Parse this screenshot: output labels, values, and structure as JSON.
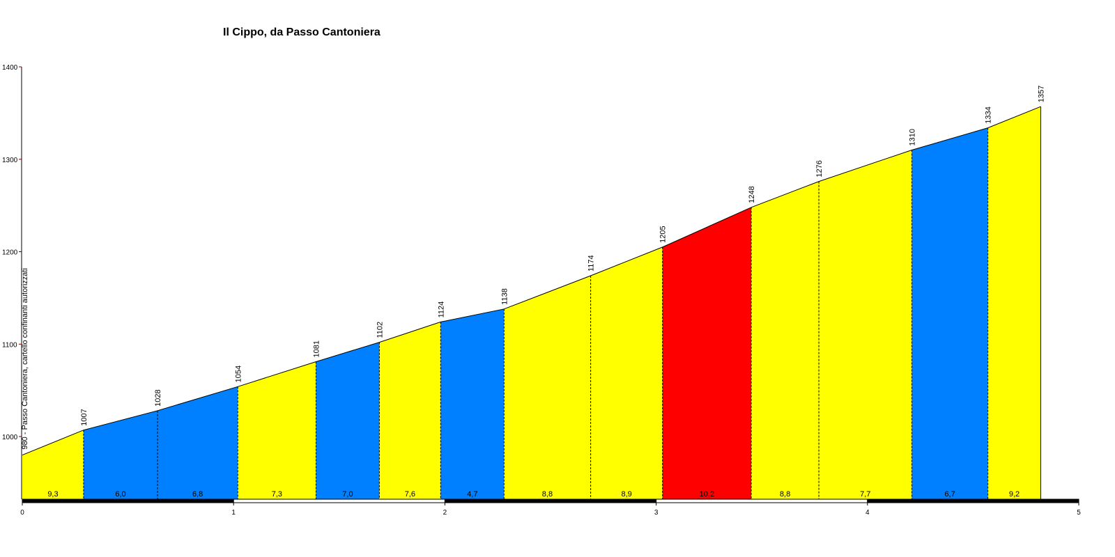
{
  "chart_data": {
    "type": "area",
    "title": "Il Cippo, da Passo Cantoniera",
    "xlabel": "",
    "ylabel": "",
    "xlim": [
      0,
      5
    ],
    "ylim": [
      930,
      1400
    ],
    "x_ticks": [
      "0",
      "1",
      "2",
      "3",
      "4",
      "5"
    ],
    "y_ticks": [
      "1000",
      "1100",
      "1200",
      "1300",
      "1400"
    ],
    "start_label": "980 - Passo Cantoniera, cartello confinanti autorizzati",
    "points": [
      {
        "x": 0.0,
        "y": 980,
        "label": ""
      },
      {
        "x": 0.29,
        "y": 1007,
        "label": "1007"
      },
      {
        "x": 0.64,
        "y": 1028,
        "label": "1028"
      },
      {
        "x": 1.02,
        "y": 1054,
        "label": "1054"
      },
      {
        "x": 1.39,
        "y": 1081,
        "label": "1081"
      },
      {
        "x": 1.69,
        "y": 1102,
        "label": "1102"
      },
      {
        "x": 1.98,
        "y": 1124,
        "label": "1124"
      },
      {
        "x": 2.28,
        "y": 1138,
        "label": "1138"
      },
      {
        "x": 2.69,
        "y": 1174,
        "label": "1174"
      },
      {
        "x": 3.03,
        "y": 1205,
        "label": "1205"
      },
      {
        "x": 3.45,
        "y": 1248,
        "label": "1248"
      },
      {
        "x": 3.77,
        "y": 1276,
        "label": "1276"
      },
      {
        "x": 4.21,
        "y": 1310,
        "label": "1310"
      },
      {
        "x": 4.57,
        "y": 1334,
        "label": "1334"
      },
      {
        "x": 4.82,
        "y": 1357,
        "label": "1357"
      }
    ],
    "segments": [
      {
        "grade": "9,3",
        "color": "#ffff00"
      },
      {
        "grade": "6,0",
        "color": "#0080ff"
      },
      {
        "grade": "6,8",
        "color": "#0080ff"
      },
      {
        "grade": "7,3",
        "color": "#ffff00"
      },
      {
        "grade": "7,0",
        "color": "#0080ff"
      },
      {
        "grade": "7,6",
        "color": "#ffff00"
      },
      {
        "grade": "4,7",
        "color": "#0080ff"
      },
      {
        "grade": "8,8",
        "color": "#ffff00"
      },
      {
        "grade": "8,9",
        "color": "#ffff00"
      },
      {
        "grade": "10,2",
        "color": "#ff0000"
      },
      {
        "grade": "8,8",
        "color": "#ffff00"
      },
      {
        "grade": "7,7",
        "color": "#ffff00"
      },
      {
        "grade": "6,7",
        "color": "#0080ff"
      },
      {
        "grade": "9,2",
        "color": "#ffff00"
      }
    ],
    "grid": false,
    "legend": "none",
    "colors": {
      "yellow": "#ffff00",
      "blue": "#0080ff",
      "red": "#ff0000",
      "y_axis_ticks": "#800000"
    }
  }
}
